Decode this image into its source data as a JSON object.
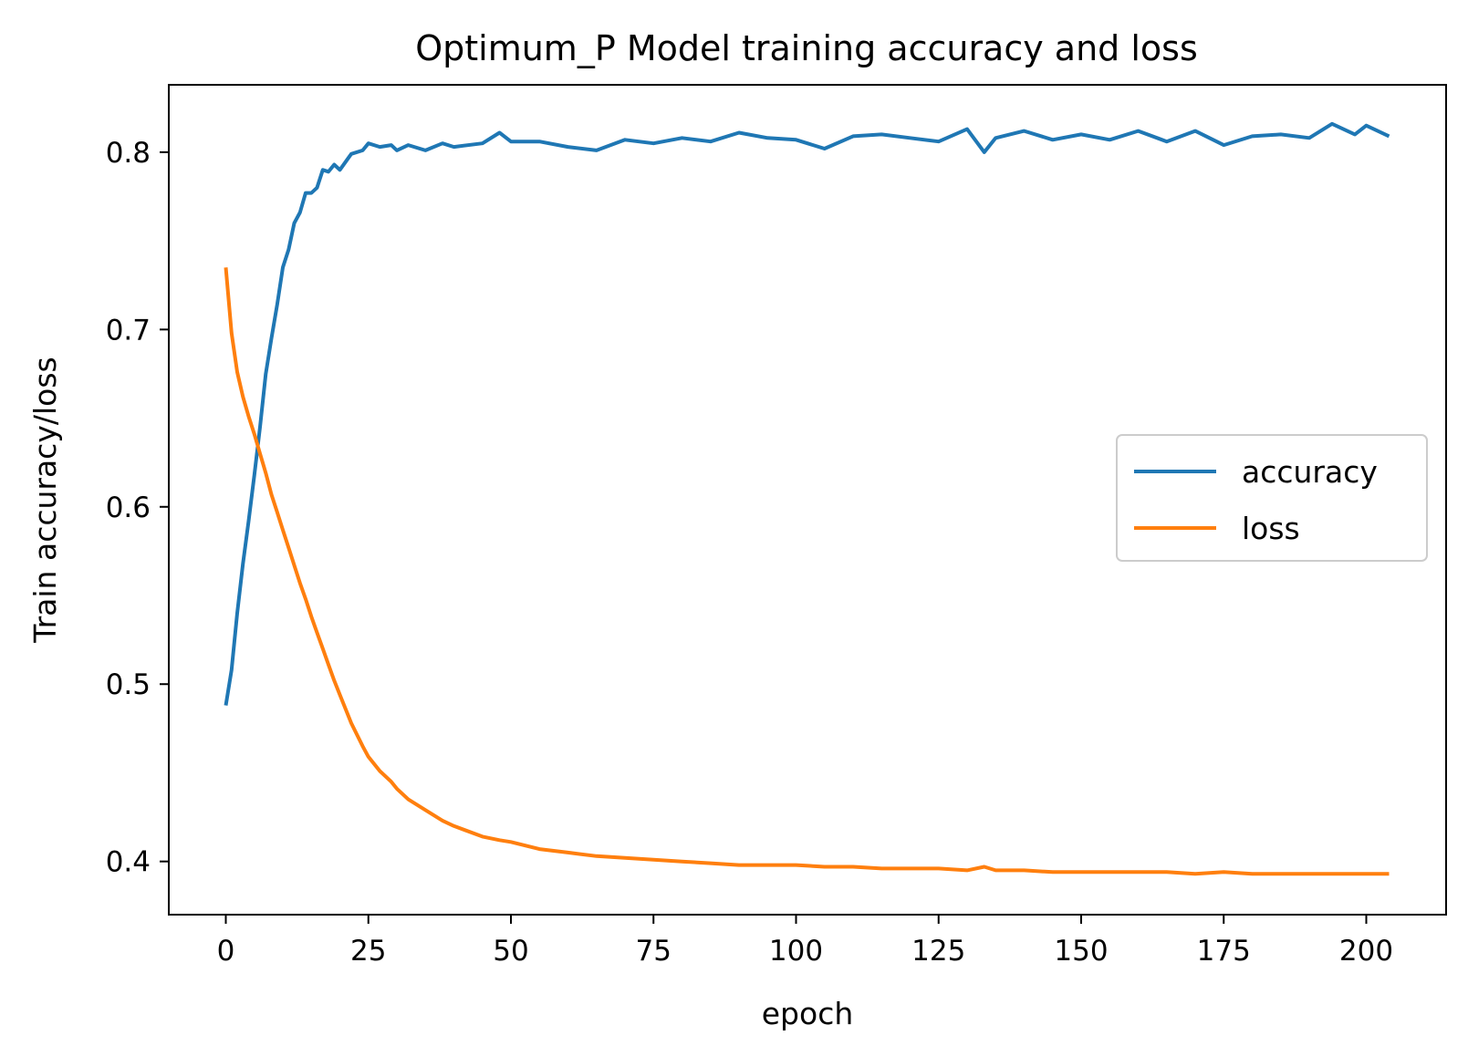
{
  "chart_data": {
    "type": "line",
    "title": "Optimum_P Model training accuracy and loss",
    "xlabel": "epoch",
    "ylabel": "Train accuracy/loss",
    "xlim": [
      -10,
      214
    ],
    "ylim": [
      0.37,
      0.838
    ],
    "xticks": [
      0,
      25,
      50,
      75,
      100,
      125,
      150,
      175,
      200
    ],
    "xtick_labels": [
      "0",
      "25",
      "50",
      "75",
      "100",
      "125",
      "150",
      "175",
      "200"
    ],
    "yticks": [
      0.4,
      0.5,
      0.6,
      0.7,
      0.8
    ],
    "ytick_labels": [
      "0.4",
      "0.5",
      "0.6",
      "0.7",
      "0.8"
    ],
    "grid": false,
    "legend_position": "center-right",
    "x": [
      0,
      1,
      2,
      3,
      4,
      5,
      6,
      7,
      8,
      9,
      10,
      11,
      12,
      13,
      14,
      15,
      16,
      17,
      18,
      19,
      20,
      22,
      24,
      25,
      27,
      29,
      30,
      32,
      35,
      38,
      40,
      45,
      48,
      50,
      55,
      60,
      65,
      70,
      75,
      80,
      85,
      90,
      95,
      100,
      105,
      110,
      115,
      120,
      125,
      130,
      133,
      135,
      140,
      145,
      150,
      155,
      160,
      165,
      170,
      175,
      180,
      185,
      190,
      194,
      198,
      200,
      204
    ],
    "series": [
      {
        "name": "accuracy",
        "color": "#1f77b4",
        "values": [
          0.488,
          0.508,
          0.54,
          0.568,
          0.592,
          0.618,
          0.645,
          0.675,
          0.695,
          0.714,
          0.735,
          0.745,
          0.76,
          0.766,
          0.777,
          0.777,
          0.78,
          0.79,
          0.789,
          0.793,
          0.79,
          0.799,
          0.801,
          0.805,
          0.803,
          0.804,
          0.801,
          0.804,
          0.801,
          0.805,
          0.803,
          0.805,
          0.811,
          0.806,
          0.806,
          0.803,
          0.801,
          0.807,
          0.805,
          0.808,
          0.806,
          0.811,
          0.808,
          0.807,
          0.802,
          0.809,
          0.81,
          0.808,
          0.806,
          0.813,
          0.8,
          0.808,
          0.812,
          0.807,
          0.81,
          0.807,
          0.812,
          0.806,
          0.812,
          0.804,
          0.809,
          0.81,
          0.808,
          0.816,
          0.81,
          0.815,
          0.809
        ]
      },
      {
        "name": "loss",
        "color": "#ff7f0e",
        "values": [
          0.735,
          0.698,
          0.676,
          0.662,
          0.651,
          0.641,
          0.63,
          0.619,
          0.607,
          0.597,
          0.587,
          0.577,
          0.567,
          0.557,
          0.548,
          0.538,
          0.529,
          0.52,
          0.511,
          0.502,
          0.494,
          0.478,
          0.465,
          0.459,
          0.451,
          0.445,
          0.441,
          0.435,
          0.429,
          0.423,
          0.42,
          0.414,
          0.412,
          0.411,
          0.407,
          0.405,
          0.403,
          0.402,
          0.401,
          0.4,
          0.399,
          0.398,
          0.398,
          0.398,
          0.397,
          0.397,
          0.396,
          0.396,
          0.396,
          0.395,
          0.397,
          0.395,
          0.395,
          0.394,
          0.394,
          0.394,
          0.394,
          0.394,
          0.393,
          0.394,
          0.393,
          0.393,
          0.393,
          0.393,
          0.393,
          0.393,
          0.393
        ]
      }
    ]
  }
}
